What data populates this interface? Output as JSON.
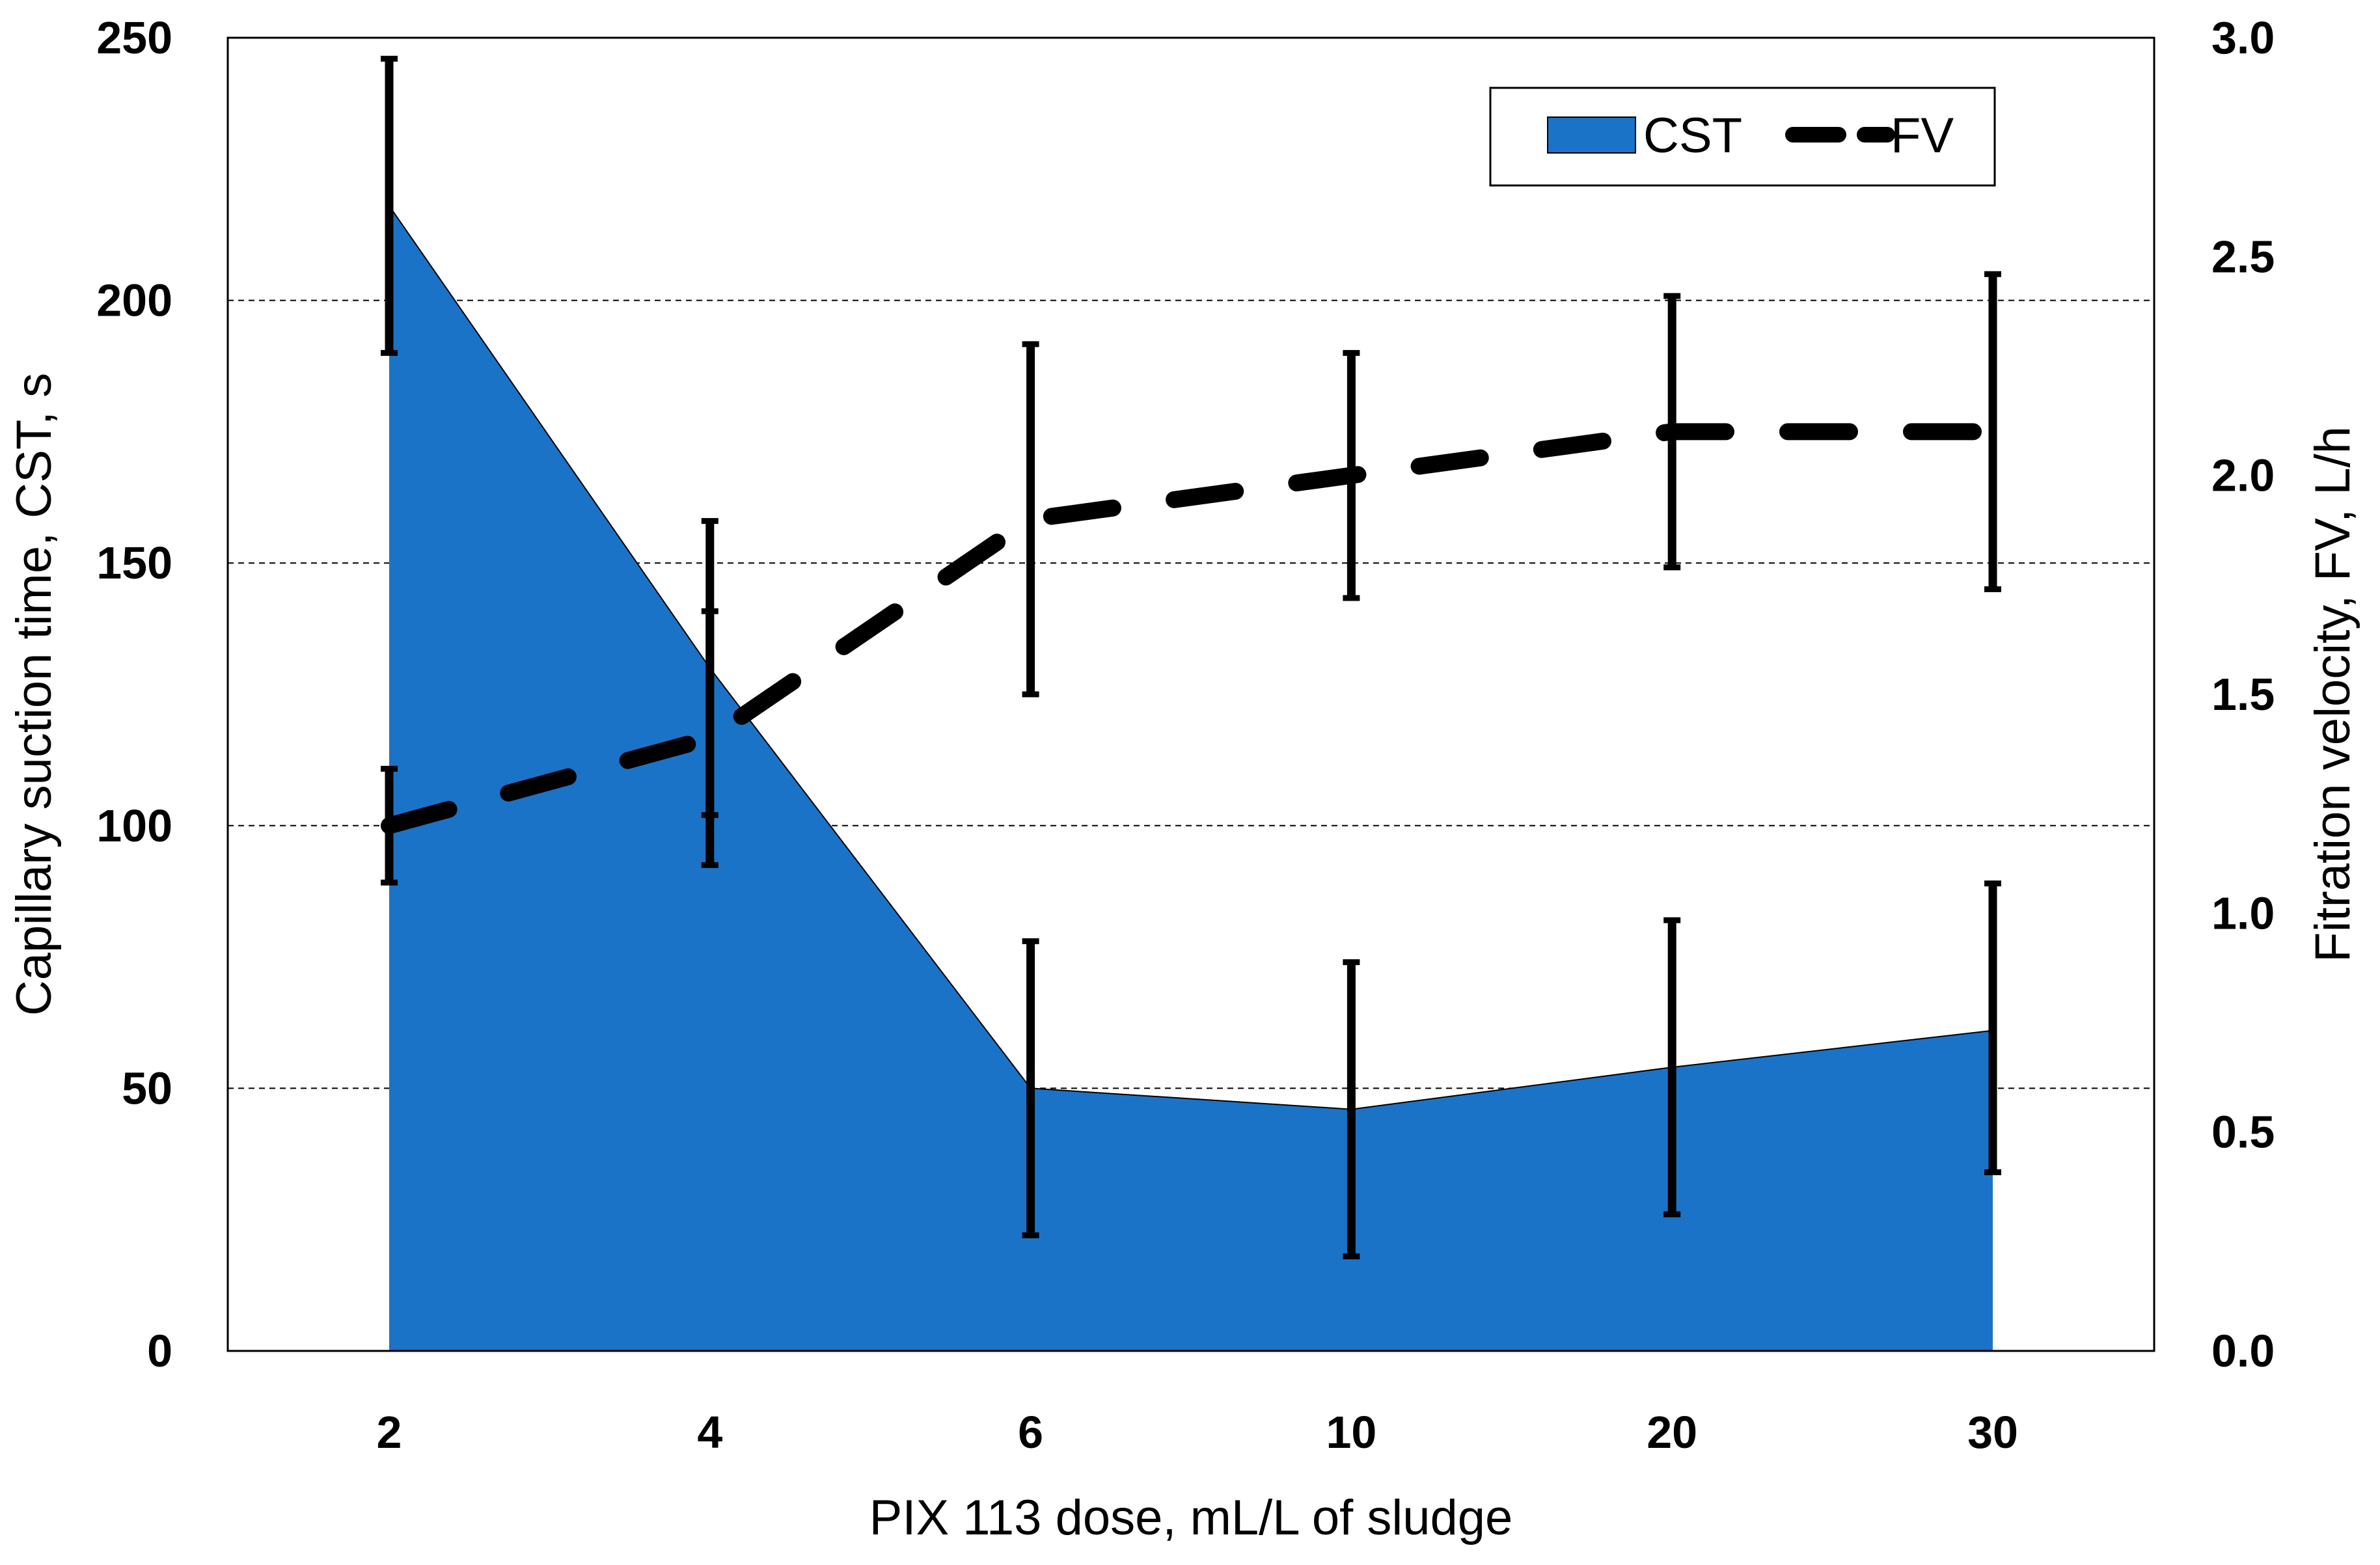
{
  "chart_data": {
    "type": "area",
    "title": "",
    "xlabel": "PIX 113 dose, mL/L of sludge",
    "ylabel": "Capillary suction time, CST, s",
    "y2label": "Fitration velocity, FV, L/h",
    "categories": [
      "2",
      "4",
      "6",
      "10",
      "20",
      "30"
    ],
    "ylim": [
      0,
      250
    ],
    "y2lim": [
      0,
      3
    ],
    "yticks": [
      "0",
      "50",
      "100",
      "150",
      "200",
      "250"
    ],
    "y2ticks": [
      "0.0",
      "0.5",
      "1.0",
      "1.5",
      "2.0",
      "2.5",
      "3.0"
    ],
    "grid": "horizontal-dashed",
    "legend_position": "top-right",
    "series": [
      {
        "name": "CST",
        "axis": "left",
        "style": "area",
        "color": "#1b73c8",
        "values": [
          218,
          130,
          50,
          46,
          54,
          61
        ],
        "error_low": [
          190,
          102,
          22,
          18,
          26,
          34
        ],
        "error_high": [
          246,
          158,
          78,
          74,
          82,
          89
        ]
      },
      {
        "name": "FV",
        "axis": "right",
        "style": "dashed-line",
        "color": "#000000",
        "values": [
          1.2,
          1.4,
          1.9,
          2.0,
          2.1,
          2.1
        ],
        "error_low": [
          1.07,
          1.11,
          1.5,
          1.72,
          1.79,
          1.74
        ],
        "error_high": [
          1.33,
          1.69,
          2.3,
          2.28,
          2.41,
          2.46
        ]
      }
    ]
  }
}
